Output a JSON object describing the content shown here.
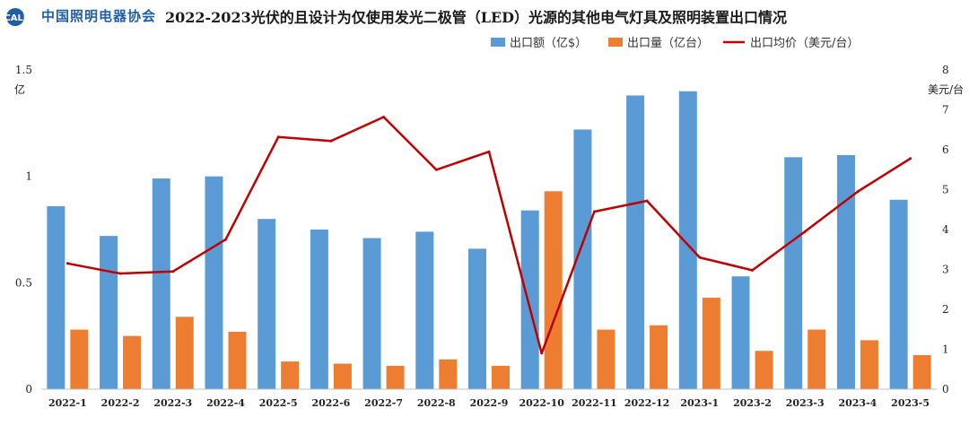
{
  "header": {
    "logo_text": "CALI",
    "org_name": "中国照明电器协会",
    "title": "2022-2023光伏的且设计为仅使用发光二极管（LED）光源的其他电气灯具及照明装置出口情况"
  },
  "colors": {
    "bar_value": "#5b9bd5",
    "bar_quantity": "#ed7d31",
    "line_price": "#c00000",
    "axis": "#bfbfbf",
    "logo": "#1f5fa8"
  },
  "chart_data": {
    "type": "bar",
    "title": "2022-2023光伏的且设计为仅使用发光二极管（LED）光源的其他电气灯具及照明装置出口情况",
    "categories": [
      "2022-1",
      "2022-2",
      "2022-3",
      "2022-4",
      "2022-5",
      "2022-6",
      "2022-7",
      "2022-8",
      "2022-9",
      "2022-10",
      "2022-11",
      "2022-12",
      "2023-1",
      "2023-2",
      "2023-3",
      "2023-4",
      "2023-5"
    ],
    "left_axis": {
      "unit": "亿",
      "ylim": [
        0,
        1.5
      ],
      "ticks": [
        0,
        0.5,
        1,
        1.5
      ],
      "tick_labels": [
        "0",
        "0.5",
        "1",
        "1.5"
      ]
    },
    "right_axis": {
      "unit": "美元/台",
      "ylim": [
        0,
        8
      ],
      "ticks": [
        0,
        1,
        2,
        3,
        4,
        5,
        6,
        7,
        8
      ],
      "tick_labels": [
        "0",
        "1",
        "2",
        "3",
        "4",
        "5",
        "6",
        "7",
        "8"
      ]
    },
    "series": [
      {
        "name": "出口额（亿$）",
        "type": "bar",
        "axis": "left",
        "values": [
          0.86,
          0.72,
          0.99,
          1.0,
          0.8,
          0.75,
          0.71,
          0.74,
          0.66,
          0.84,
          1.22,
          1.38,
          1.4,
          0.53,
          1.09,
          1.1,
          0.89
        ]
      },
      {
        "name": "出口量（亿台）",
        "type": "bar",
        "axis": "left",
        "values": [
          0.28,
          0.25,
          0.34,
          0.27,
          0.13,
          0.12,
          0.11,
          0.14,
          0.11,
          0.93,
          0.28,
          0.3,
          0.43,
          0.18,
          0.28,
          0.23,
          0.16
        ]
      },
      {
        "name": "出口均价（美元/台）",
        "type": "line",
        "axis": "right",
        "values": [
          3.15,
          2.9,
          2.95,
          3.75,
          6.32,
          6.22,
          6.82,
          5.5,
          5.95,
          0.9,
          4.45,
          4.72,
          3.3,
          2.98,
          3.95,
          4.95,
          5.78
        ]
      }
    ],
    "legend_position": "top-right",
    "grid": false
  }
}
